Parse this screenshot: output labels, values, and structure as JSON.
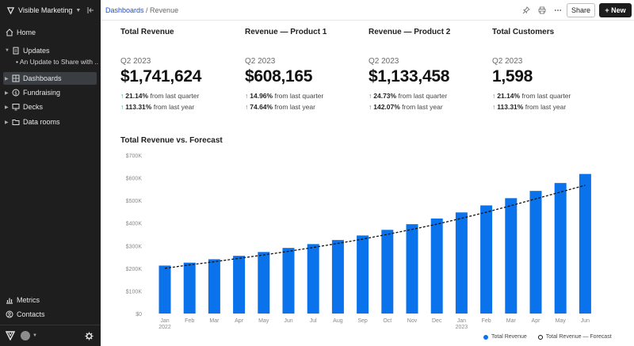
{
  "sidebar": {
    "org_name": "Visible Marketing",
    "items": [
      {
        "label": "Home",
        "icon": "home-icon"
      },
      {
        "label": "Updates",
        "icon": "document-icon"
      },
      {
        "label": "Dashboards",
        "icon": "grid-icon"
      },
      {
        "label": "Fundraising",
        "icon": "dollar-icon"
      },
      {
        "label": "Decks",
        "icon": "presentation-icon"
      },
      {
        "label": "Data rooms",
        "icon": "folder-icon"
      }
    ],
    "update_child": "An Update to Share with ...",
    "bottom_items": [
      {
        "label": "Metrics",
        "icon": "bar-chart-icon"
      },
      {
        "label": "Contacts",
        "icon": "contacts-icon"
      }
    ]
  },
  "topbar": {
    "breadcrumb_root": "Dashboards",
    "breadcrumb_sep": " / ",
    "breadcrumb_current": "Revenue",
    "share_label": "Share",
    "new_label": "+ New"
  },
  "kpis": [
    {
      "title": "Total Revenue",
      "period": "Q2 2023",
      "value": "$1,741,624",
      "delta1": "21.14%",
      "delta1_text": " from last quarter",
      "delta2": "113.31%",
      "delta2_text": " from last year"
    },
    {
      "title": "Revenue — Product 1",
      "period": "Q2 2023",
      "value": "$608,165",
      "delta1": "14.96%",
      "delta1_text": " from last quarter",
      "delta2": "74.64%",
      "delta2_text": " from last year"
    },
    {
      "title": "Revenue — Product 2",
      "period": "Q2 2023",
      "value": "$1,133,458",
      "delta1": "24.73%",
      "delta1_text": " from last quarter",
      "delta2": "142.07%",
      "delta2_text": " from last year"
    },
    {
      "title": "Total Customers",
      "period": "Q2 2023",
      "value": "1,598",
      "delta1": "21.14%",
      "delta1_text": " from last quarter",
      "delta2": "113.31%",
      "delta2_text": " from last year"
    }
  ],
  "chart_title": "Total Revenue vs. Forecast",
  "chart_data": {
    "type": "bar",
    "title": "Total Revenue vs. Forecast",
    "categories": [
      "Jan",
      "Feb",
      "Mar",
      "Apr",
      "May",
      "Jun",
      "Jul",
      "Aug",
      "Sep",
      "Oct",
      "Nov",
      "Dec",
      "Jan",
      "Feb",
      "Mar",
      "Apr",
      "May",
      "Jun"
    ],
    "year_labels": [
      "2022",
      "",
      "",
      "",
      "",
      "",
      "",
      "",
      "",
      "",
      "",
      "",
      "2023",
      "",
      "",
      "",
      "",
      ""
    ],
    "y_ticks": [
      "$0",
      "$100K",
      "$200K",
      "$300K",
      "$400K",
      "$500K",
      "$600K",
      "$700K"
    ],
    "ylim": [
      0,
      700000
    ],
    "series": [
      {
        "name": "Total Revenue",
        "type": "bar",
        "color": "#0a73eb",
        "values": [
          212000,
          225000,
          240000,
          255000,
          272000,
          290000,
          307000,
          325000,
          345000,
          370000,
          395000,
          420000,
          447000,
          478000,
          510000,
          542000,
          577000,
          617000
        ]
      },
      {
        "name": "Total Revenue — Forecast",
        "type": "line",
        "style": "dashed",
        "color": "#111111",
        "values": [
          200000,
          215000,
          229000,
          244000,
          259000,
          275000,
          292000,
          310000,
          329000,
          350000,
          372000,
          395000,
          421000,
          448000,
          477000,
          507000,
          537000,
          567000
        ]
      }
    ],
    "legend_position": "bottom-right",
    "grid": false
  }
}
